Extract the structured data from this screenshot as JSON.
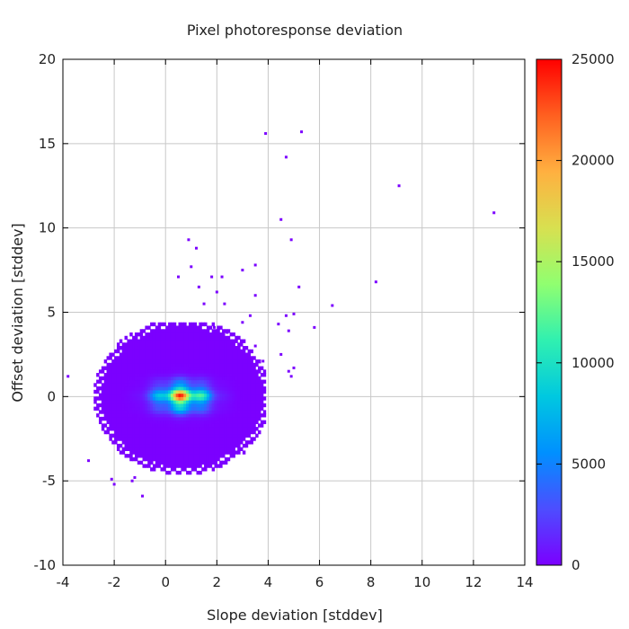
{
  "chart_data": {
    "type": "heatmap",
    "title": "Pixel photoresponse deviation",
    "xlabel": "Slope deviation [stddev]",
    "ylabel": "Offset deviation [stddev]",
    "xlim": [
      -4,
      14
    ],
    "ylim": [
      -10,
      20
    ],
    "xticks": [
      -4,
      -2,
      0,
      2,
      4,
      6,
      8,
      10,
      12,
      14
    ],
    "yticks": [
      -10,
      -5,
      0,
      5,
      10,
      15,
      20
    ],
    "grid": true,
    "colorbar": {
      "range": [
        0,
        25000
      ],
      "ticks": [
        0,
        5000,
        10000,
        15000,
        20000,
        25000
      ],
      "colormap": "rainbow",
      "colors": [
        "#7b00ff",
        "#4d4dff",
        "#0090ff",
        "#00c8e0",
        "#30f0b0",
        "#90ff70",
        "#d8e050",
        "#ffb040",
        "#ff6020",
        "#ff0000"
      ]
    },
    "main_cluster": {
      "center": [
        0.6,
        -0.1
      ],
      "x_range": [
        -3.9,
        3.9
      ],
      "y_range": [
        -5.6,
        4.3
      ],
      "peak_count": 24000
    },
    "outlier_points": [
      [
        3.9,
        15.6
      ],
      [
        5.3,
        15.7
      ],
      [
        4.7,
        14.2
      ],
      [
        9.1,
        12.5
      ],
      [
        12.8,
        10.9
      ],
      [
        4.5,
        10.5
      ],
      [
        4.9,
        9.3
      ],
      [
        0.9,
        9.3
      ],
      [
        1.2,
        8.8
      ],
      [
        1.0,
        7.7
      ],
      [
        0.5,
        7.1
      ],
      [
        1.8,
        7.1
      ],
      [
        2.2,
        7.1
      ],
      [
        3.0,
        7.5
      ],
      [
        3.5,
        7.8
      ],
      [
        8.2,
        6.8
      ],
      [
        5.2,
        6.5
      ],
      [
        1.3,
        6.5
      ],
      [
        2.0,
        6.2
      ],
      [
        3.5,
        6.0
      ],
      [
        1.5,
        5.5
      ],
      [
        2.3,
        5.5
      ],
      [
        6.5,
        5.4
      ],
      [
        4.7,
        4.8
      ],
      [
        5.0,
        4.9
      ],
      [
        3.3,
        4.8
      ],
      [
        3.0,
        4.4
      ],
      [
        4.4,
        4.3
      ],
      [
        5.8,
        4.1
      ],
      [
        1.9,
        4.1
      ],
      [
        4.8,
        3.9
      ],
      [
        2.4,
        3.8
      ],
      [
        3.5,
        3.0
      ],
      [
        4.5,
        2.5
      ],
      [
        3.8,
        2.1
      ],
      [
        4.8,
        1.5
      ],
      [
        5.0,
        1.7
      ],
      [
        4.9,
        1.2
      ],
      [
        -3.8,
        1.2
      ],
      [
        -0.9,
        -5.9
      ],
      [
        -2.0,
        -5.2
      ],
      [
        -2.1,
        -4.9
      ],
      [
        -1.3,
        -5.0
      ],
      [
        -1.2,
        -4.8
      ],
      [
        -3.0,
        -3.8
      ]
    ]
  }
}
